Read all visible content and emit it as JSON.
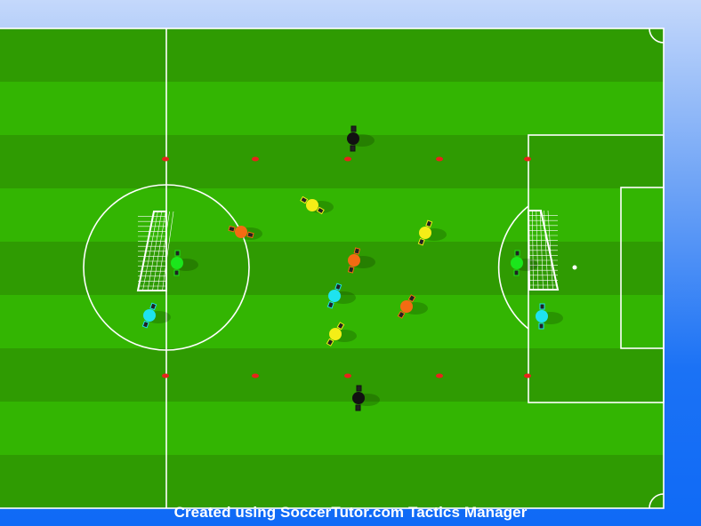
{
  "footer": {
    "credit": "Created using SoccerTutor.com Tactics Manager"
  },
  "colors": {
    "stripe_dark": "#2f9b02",
    "stripe_light": "#33b502",
    "lines": "#ffffff",
    "cone": "#e8231b",
    "teams": {
      "black": "#111111",
      "yellow": "#f4ee17",
      "orange": "#f36b12",
      "cyan": "#1ee3ef",
      "green": "#1be61b"
    }
  },
  "players": [
    {
      "team": "black"
    },
    {
      "team": "black"
    },
    {
      "team": "yellow"
    },
    {
      "team": "yellow"
    },
    {
      "team": "yellow"
    },
    {
      "team": "orange"
    },
    {
      "team": "orange"
    },
    {
      "team": "orange"
    },
    {
      "team": "cyan"
    },
    {
      "team": "cyan"
    },
    {
      "team": "cyan"
    },
    {
      "team": "green"
    },
    {
      "team": "green"
    }
  ],
  "cones_count": 10,
  "goals_count": 2
}
